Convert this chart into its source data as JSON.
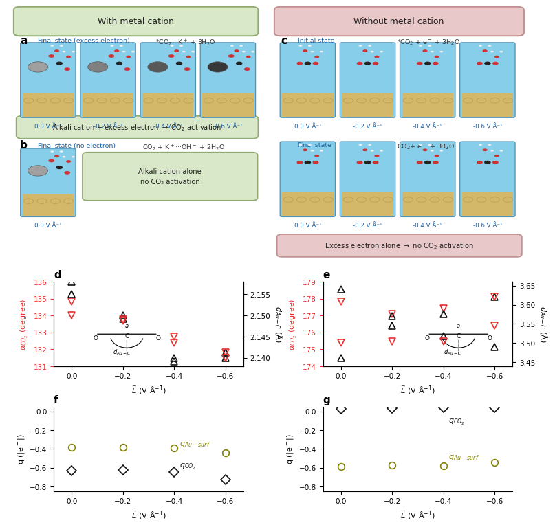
{
  "title_left": "With metal cation",
  "title_right": "Without metal cation",
  "title_left_bg": "#d8e8c8",
  "title_right_bg": "#e8c8c8",
  "title_border_left": "#90aa70",
  "title_border_right": "#c09090",
  "panel_d": {
    "label": "d",
    "x": [
      0.0,
      -0.2,
      -0.4,
      -0.6
    ],
    "alpha_tri_up": [
      136.0,
      133.8,
      131.3,
      131.8
    ],
    "alpha_tri_down": [
      134.8,
      133.7,
      132.4,
      131.8
    ],
    "d_tri_up": [
      2.155,
      2.15,
      2.14,
      2.14
    ],
    "d_tri_down": [
      2.15,
      2.149,
      2.145,
      2.14
    ],
    "ylim_left": [
      131,
      136
    ],
    "yticks_left": [
      131,
      132,
      133,
      134,
      135,
      136
    ],
    "ylim_right": [
      2.138,
      2.158
    ],
    "yticks_right": [
      2.14,
      2.145,
      2.15,
      2.155
    ]
  },
  "panel_e": {
    "label": "e",
    "x": [
      0.0,
      -0.2,
      -0.4,
      -0.6
    ],
    "alpha_tri_up": [
      174.5,
      176.4,
      175.8,
      178.1
    ],
    "alpha_tri_down": [
      177.8,
      177.1,
      177.4,
      178.1
    ],
    "d_tri_up": [
      3.64,
      3.57,
      3.575,
      3.49
    ],
    "d_tri_down": [
      3.5,
      3.505,
      3.505,
      3.545
    ],
    "ylim_left": [
      174,
      179
    ],
    "yticks_left": [
      174,
      175,
      176,
      177,
      178,
      179
    ],
    "ylim_right": [
      3.44,
      3.66
    ],
    "yticks_right": [
      3.45,
      3.5,
      3.55,
      3.6,
      3.65
    ]
  },
  "panel_f": {
    "label": "f",
    "x": [
      0.0,
      -0.2,
      -0.4,
      -0.6
    ],
    "q_co2": [
      -0.63,
      -0.62,
      -0.645,
      -0.725
    ],
    "q_ausurf": [
      -0.38,
      -0.385,
      -0.39,
      -0.44
    ],
    "ylim": [
      -0.85,
      0.05
    ],
    "yticks": [
      -0.8,
      -0.6,
      -0.4,
      -0.2,
      0
    ]
  },
  "panel_g": {
    "label": "g",
    "x": [
      0.0,
      -0.2,
      -0.4,
      -0.6
    ],
    "q_co2": [
      0.03,
      0.035,
      0.04,
      0.045
    ],
    "q_ausurf": [
      -0.59,
      -0.575,
      -0.58,
      -0.545
    ],
    "ylim": [
      -0.85,
      0.05
    ],
    "yticks": [
      -0.8,
      -0.6,
      -0.4,
      -0.2,
      0
    ]
  },
  "e_field_labels": [
    "0.0 V Å⁻¹",
    "-0.2 V Å⁻¹",
    "-0.4 V Å⁻¹",
    "-0.6 V Å⁻¹"
  ],
  "sky_blue": "#87ceeb",
  "gold": "#d4b86a",
  "gold_dark": "#b89a4a",
  "red_marker": "#e83030",
  "olive": "#808000",
  "blue_text": "#2060a0"
}
